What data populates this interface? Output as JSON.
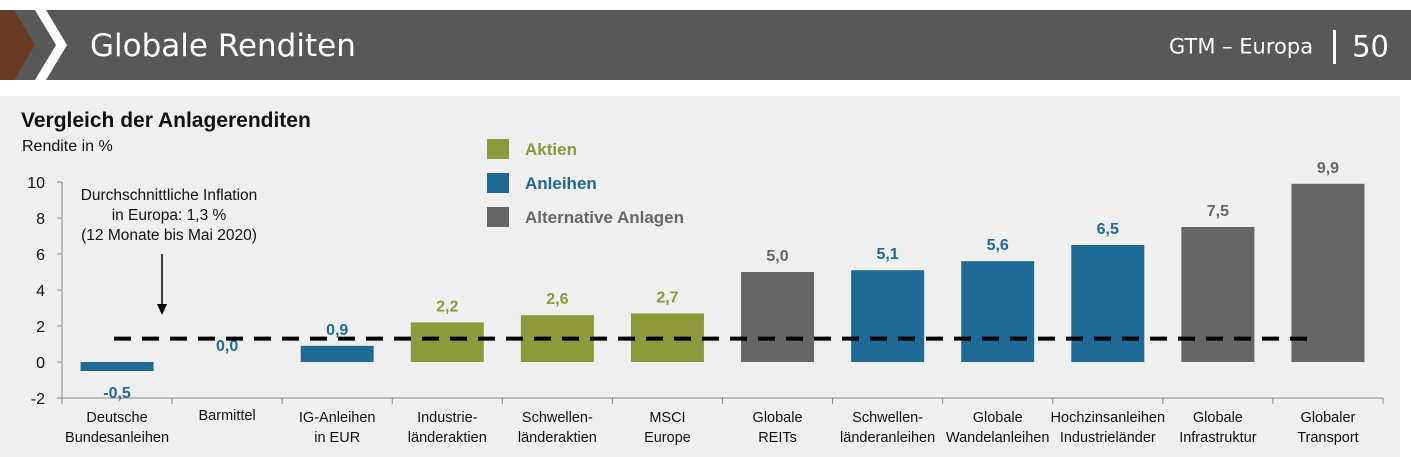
{
  "header": {
    "title": "Globale Renditen",
    "subtitle": "GTM – Europa",
    "page_number": "50"
  },
  "colors": {
    "header_bg": "#585858",
    "chevron": "#6b3a22",
    "aktien": "#8c9a3b",
    "anleihen": "#1f6a94",
    "alternative": "#666666",
    "panel_bg": "#efefef"
  },
  "chart_data": {
    "type": "bar",
    "title": "Vergleich der Anlagerenditen",
    "ylabel": "Rendite in %",
    "ylim": [
      -2,
      10
    ],
    "yticks": [
      -2,
      0,
      2,
      4,
      6,
      8,
      10
    ],
    "grid": false,
    "legend_position": "top-center",
    "legend": [
      {
        "key": "aktien",
        "label": "Aktien"
      },
      {
        "key": "anleihen",
        "label": "Anleihen"
      },
      {
        "key": "alternative",
        "label": "Alternative Anlagen"
      }
    ],
    "categories": [
      [
        "Deutsche",
        "Bundesanleihen"
      ],
      [
        "Barmittel"
      ],
      [
        "IG-Anleihen",
        "in EUR"
      ],
      [
        "Industrie-",
        "länderaktien"
      ],
      [
        "Schwellen-",
        "länderaktien"
      ],
      [
        "MSCI",
        "Europe"
      ],
      [
        "Globale",
        "REITs"
      ],
      [
        "Schwellen-",
        "länderanleihen"
      ],
      [
        "Globale",
        "Wandelanleihen"
      ],
      [
        "Hochzinsanleihen",
        "Industrieländer"
      ],
      [
        "Globale",
        "Infrastruktur"
      ],
      [
        "Globaler",
        "Transport"
      ]
    ],
    "values": [
      -0.5,
      0.0,
      0.9,
      2.2,
      2.6,
      2.7,
      5.0,
      5.1,
      5.6,
      6.5,
      7.5,
      9.9
    ],
    "value_labels": [
      "-0,5",
      "0,0",
      "0,9",
      "2,2",
      "2,6",
      "2,7",
      "5,0",
      "5,1",
      "5,6",
      "6,5",
      "7,5",
      "9,9"
    ],
    "groups": [
      "anleihen",
      "anleihen",
      "anleihen",
      "aktien",
      "aktien",
      "aktien",
      "alternative",
      "anleihen",
      "anleihen",
      "anleihen",
      "alternative",
      "alternative"
    ],
    "reference_line": {
      "value": 1.3,
      "style": "dashed",
      "annotation": [
        "Durchschnittliche Inflation",
        "in Europa: 1,3 %",
        "(12 Monate bis Mai 2020)"
      ]
    }
  }
}
